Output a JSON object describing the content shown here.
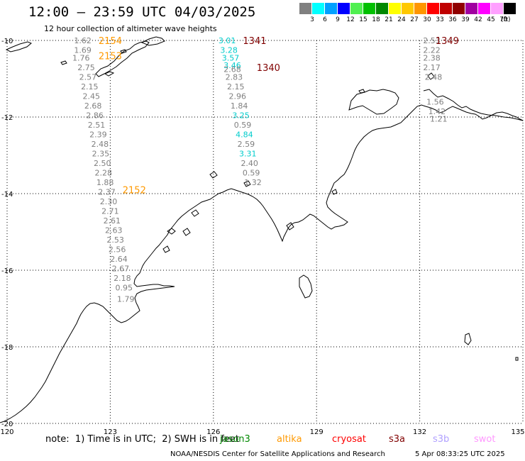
{
  "title": "12:00 – 23:59 UTC 04/03/2025",
  "subtitle": "12 hour collection of altimeter wave heights",
  "legend": {
    "unit": "(ft)",
    "bins": [
      {
        "label": "3",
        "color": "#808080"
      },
      {
        "label": "6",
        "color": "#00ffff"
      },
      {
        "label": "9",
        "color": "#00a0ff"
      },
      {
        "label": "12",
        "color": "#0000ff"
      },
      {
        "label": "15",
        "color": "#50f050"
      },
      {
        "label": "18",
        "color": "#00c000"
      },
      {
        "label": "21",
        "color": "#008800"
      },
      {
        "label": "24",
        "color": "#ffff00"
      },
      {
        "label": "27",
        "color": "#ffc800"
      },
      {
        "label": "30",
        "color": "#ff9600"
      },
      {
        "label": "33",
        "color": "#ff0000"
      },
      {
        "label": "36",
        "color": "#c00000"
      },
      {
        "label": "39",
        "color": "#900000"
      },
      {
        "label": "42",
        "color": "#a000a0"
      },
      {
        "label": "45",
        "color": "#ff00ff"
      },
      {
        "label": "70",
        "color": "#ffa0ff"
      },
      {
        "label": "",
        "color": "#000000"
      }
    ]
  },
  "map": {
    "lon_range": [
      120,
      135
    ],
    "lat_range": [
      -20,
      -10
    ],
    "lon_ticks": [
      "120",
      "123",
      "126",
      "129",
      "132",
      "135"
    ],
    "lat_ticks": [
      "-10",
      "-12",
      "-14",
      "-16",
      "-18",
      "-20"
    ],
    "grid": "dotted"
  },
  "passes": [
    {
      "id": "2154",
      "color": "#ff9900",
      "lon": 123.0,
      "lat": -10.0
    },
    {
      "id": "2153",
      "color": "#ff9900",
      "lon": 123.0,
      "lat": -10.4
    },
    {
      "id": "2152",
      "color": "#ff9900",
      "lon": 123.7,
      "lat": -13.9
    },
    {
      "id": "1341",
      "color": "#800000",
      "lon": 127.2,
      "lat": -10.0
    },
    {
      "id": "1340",
      "color": "#800000",
      "lon": 127.6,
      "lat": -10.7
    },
    {
      "id": "1349",
      "color": "#800000",
      "lon": 132.8,
      "lat": -10.0
    }
  ],
  "tracks": [
    {
      "name": "track-2154",
      "points": [
        {
          "value": "1.62",
          "color": "#808080",
          "lon": 122.2,
          "lat": -10.0
        },
        {
          "value": "1.69",
          "color": "#808080",
          "lon": 122.2,
          "lat": -10.25
        },
        {
          "value": "1.76",
          "color": "#808080",
          "lon": 122.15,
          "lat": -10.45
        },
        {
          "value": "2.75",
          "color": "#808080",
          "lon": 122.3,
          "lat": -10.7
        },
        {
          "value": "2.57",
          "color": "#808080",
          "lon": 122.35,
          "lat": -10.95
        },
        {
          "value": "2.15",
          "color": "#808080",
          "lon": 122.4,
          "lat": -11.2
        },
        {
          "value": "2.45",
          "color": "#808080",
          "lon": 122.45,
          "lat": -11.45
        },
        {
          "value": "2.68",
          "color": "#808080",
          "lon": 122.5,
          "lat": -11.7
        },
        {
          "value": "2.86",
          "color": "#808080",
          "lon": 122.55,
          "lat": -11.95
        },
        {
          "value": "2.51",
          "color": "#808080",
          "lon": 122.6,
          "lat": -12.2
        },
        {
          "value": "2.39",
          "color": "#808080",
          "lon": 122.65,
          "lat": -12.45
        },
        {
          "value": "2.48",
          "color": "#808080",
          "lon": 122.7,
          "lat": -12.7
        },
        {
          "value": "2.35",
          "color": "#808080",
          "lon": 122.72,
          "lat": -12.95
        },
        {
          "value": "2.50",
          "color": "#808080",
          "lon": 122.77,
          "lat": -13.2
        },
        {
          "value": "2.28",
          "color": "#808080",
          "lon": 122.8,
          "lat": -13.45
        },
        {
          "value": "1.88",
          "color": "#808080",
          "lon": 122.85,
          "lat": -13.7
        },
        {
          "value": "2.37",
          "color": "#808080",
          "lon": 122.9,
          "lat": -13.95
        },
        {
          "value": "2.30",
          "color": "#808080",
          "lon": 122.95,
          "lat": -14.2
        },
        {
          "value": "2.71",
          "color": "#808080",
          "lon": 123.0,
          "lat": -14.45
        },
        {
          "value": "2.61",
          "color": "#808080",
          "lon": 123.05,
          "lat": -14.7
        },
        {
          "value": "2.63",
          "color": "#808080",
          "lon": 123.1,
          "lat": -14.95
        },
        {
          "value": "2.53",
          "color": "#808080",
          "lon": 123.15,
          "lat": -15.2
        },
        {
          "value": "2.56",
          "color": "#808080",
          "lon": 123.2,
          "lat": -15.45
        },
        {
          "value": "2.64",
          "color": "#808080",
          "lon": 123.25,
          "lat": -15.7
        },
        {
          "value": "2.67",
          "color": "#808080",
          "lon": 123.3,
          "lat": -15.95
        },
        {
          "value": "2.18",
          "color": "#808080",
          "lon": 123.35,
          "lat": -16.2
        },
        {
          "value": "0.95",
          "color": "#808080",
          "lon": 123.4,
          "lat": -16.45
        },
        {
          "value": "1.79",
          "color": "#808080",
          "lon": 123.45,
          "lat": -16.75
        }
      ]
    },
    {
      "name": "track-1341",
      "points": [
        {
          "value": "3.01",
          "color": "#00cccc",
          "lon": 126.4,
          "lat": -10.0
        },
        {
          "value": "3.28",
          "color": "#00cccc",
          "lon": 126.45,
          "lat": -10.25
        },
        {
          "value": "3.57",
          "color": "#00cccc",
          "lon": 126.5,
          "lat": -10.45
        },
        {
          "value": "3.46",
          "color": "#00cccc",
          "lon": 126.55,
          "lat": -10.65
        },
        {
          "value": "2.68",
          "color": "#808080",
          "lon": 126.55,
          "lat": -10.75
        },
        {
          "value": "2.83",
          "color": "#808080",
          "lon": 126.6,
          "lat": -10.95
        },
        {
          "value": "2.15",
          "color": "#808080",
          "lon": 126.65,
          "lat": -11.2
        },
        {
          "value": "2.96",
          "color": "#808080",
          "lon": 126.7,
          "lat": -11.45
        },
        {
          "value": "1.84",
          "color": "#808080",
          "lon": 126.75,
          "lat": -11.7
        },
        {
          "value": "3.25",
          "color": "#00cccc",
          "lon": 126.8,
          "lat": -11.95
        },
        {
          "value": "0.59",
          "color": "#808080",
          "lon": 126.85,
          "lat": -12.2
        },
        {
          "value": "4.84",
          "color": "#00cccc",
          "lon": 126.9,
          "lat": -12.45
        },
        {
          "value": "2.59",
          "color": "#808080",
          "lon": 126.95,
          "lat": -12.7
        },
        {
          "value": "3.31",
          "color": "#00cccc",
          "lon": 127.0,
          "lat": -12.95
        },
        {
          "value": "2.40",
          "color": "#808080",
          "lon": 127.05,
          "lat": -13.2
        },
        {
          "value": "0.59",
          "color": "#808080",
          "lon": 127.1,
          "lat": -13.45
        },
        {
          "value": "1.32",
          "color": "#808080",
          "lon": 127.15,
          "lat": -13.7
        }
      ]
    },
    {
      "name": "track-1349",
      "points": [
        {
          "value": "2.53",
          "color": "#808080",
          "lon": 132.35,
          "lat": -10.0
        },
        {
          "value": "2.22",
          "color": "#808080",
          "lon": 132.35,
          "lat": -10.25
        },
        {
          "value": "2.38",
          "color": "#808080",
          "lon": 132.35,
          "lat": -10.45
        },
        {
          "value": "2.17",
          "color": "#808080",
          "lon": 132.35,
          "lat": -10.7
        },
        {
          "value": "2.48",
          "color": "#808080",
          "lon": 132.4,
          "lat": -10.95
        },
        {
          "value": "1.56",
          "color": "#808080",
          "lon": 132.45,
          "lat": -11.6
        },
        {
          "value": "1.42",
          "color": "#808080",
          "lon": 132.5,
          "lat": -11.85
        },
        {
          "value": "1.21",
          "color": "#808080",
          "lon": 132.55,
          "lat": -12.05
        }
      ]
    }
  ],
  "note": "note:  1) Time is in UTC;  2) SWH is in feet",
  "satellites": [
    {
      "name": "jason3",
      "color": "#008800"
    },
    {
      "name": "altika",
      "color": "#ff9900"
    },
    {
      "name": "cryosat",
      "color": "#ff0000"
    },
    {
      "name": "s3a",
      "color": "#800000"
    },
    {
      "name": "s3b",
      "color": "#b0a0ff"
    },
    {
      "name": "swot",
      "color": "#ff99ff"
    }
  ],
  "footer_left": "NOAA/NESDIS Center for Satellite Applications and Research",
  "footer_right": "5 Apr 08:33:25 UTC 2025"
}
